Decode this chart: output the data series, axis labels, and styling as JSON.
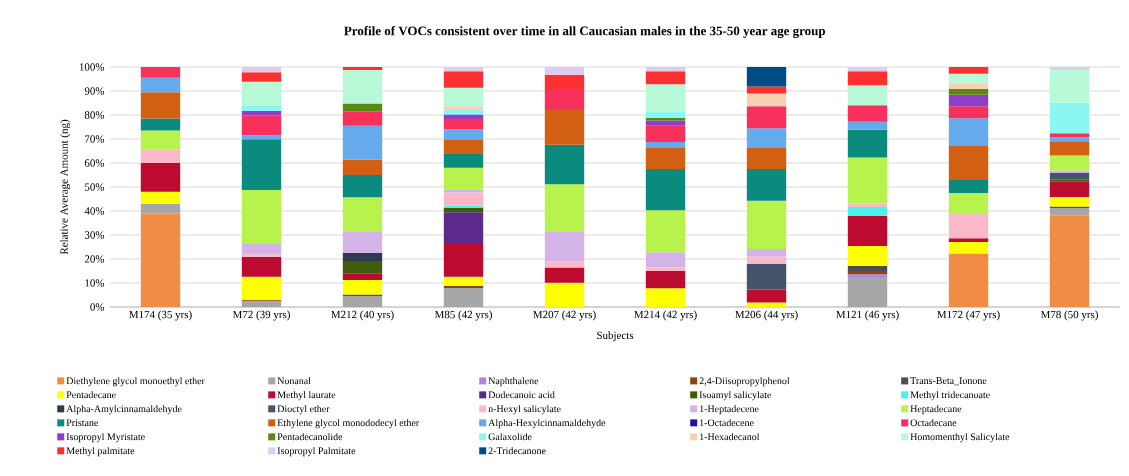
{
  "chart_data": {
    "type": "bar",
    "stacked": true,
    "title": "Profile of VOCs consistent over time in all Caucasian males in the 35-50 year age group",
    "xlabel": "Subjects",
    "ylabel": "Relative Average Amount (ng)",
    "categories": [
      "M174 (35 yrs)",
      "M72 (39 yrs)",
      "M212 (40 yrs)",
      "M85 (42 yrs)",
      "M207 (42 yrs)",
      "M214 (42 yrs)",
      "M206 (44 yrs)",
      "M121 (46 yrs)",
      "M172 (47 yrs)",
      "M78 (50 yrs)"
    ],
    "ylim": [
      0,
      100
    ],
    "yticks": [
      {
        "value": 0,
        "label": "0%"
      },
      {
        "value": 10,
        "label": "10%"
      },
      {
        "value": 20,
        "label": "20%"
      },
      {
        "value": 30,
        "label": "30%"
      },
      {
        "value": 40,
        "label": "40%"
      },
      {
        "value": 50,
        "label": "50%"
      },
      {
        "value": 60,
        "label": "60%"
      },
      {
        "value": 70,
        "label": "70%"
      },
      {
        "value": 80,
        "label": "80%"
      },
      {
        "value": 90,
        "label": "90%"
      },
      {
        "value": 100,
        "label": "100%"
      }
    ],
    "grid": "y",
    "legend": "bottom",
    "series": [
      {
        "name": "Diethylene glycol monoethyl ether",
        "color": "#f08c46",
        "values": [
          39,
          null,
          null,
          null,
          null,
          null,
          null,
          null,
          22.3,
          38.2
        ]
      },
      {
        "name": "Nonanal",
        "color": "#a6a6a6",
        "values": [
          4,
          2.6,
          4.6,
          7.9,
          null,
          null,
          null,
          12.5,
          null,
          3
        ]
      },
      {
        "name": "Naphthalene",
        "color": "#b083e0",
        "values": [
          null,
          null,
          null,
          null,
          null,
          null,
          null,
          1.1,
          null,
          null
        ]
      },
      {
        "name": "2,4-Diisopropylphenol",
        "color": "#8b4513",
        "values": [
          null,
          0.4,
          0.6,
          0.8,
          null,
          null,
          null,
          1.4,
          null,
          0.7
        ]
      },
      {
        "name": "Trans-Beta_Ionone",
        "color": "#4d4d4d",
        "values": [
          null,
          null,
          null,
          null,
          null,
          null,
          null,
          2.1,
          null,
          null
        ]
      },
      {
        "name": "Pentadecane",
        "color": "#ffff00",
        "values": [
          5,
          9.6,
          6.1,
          3.9,
          10.1,
          7.8,
          1.9,
          8.3,
          4.8,
          3.9
        ]
      },
      {
        "name": "Methyl laurate",
        "color": "#bd0a2f",
        "values": [
          12,
          8.3,
          2.8,
          13.7,
          6.4,
          7.3,
          5.4,
          12.6,
          1.5,
          6.4
        ]
      },
      {
        "name": "Dodecanoic acid",
        "color": "#5c2a8a",
        "values": [
          null,
          null,
          null,
          13.2,
          null,
          null,
          null,
          null,
          null,
          null
        ]
      },
      {
        "name": "Isoamyl salicylate",
        "color": "#3f5c0a",
        "values": [
          null,
          null,
          5.1,
          1.7,
          null,
          null,
          null,
          null,
          null,
          0.8
        ]
      },
      {
        "name": "Methyl tridecanoate",
        "color": "#4af2ec",
        "values": [
          null,
          null,
          null,
          1.1,
          null,
          null,
          null,
          3.7,
          null,
          null
        ]
      },
      {
        "name": "Alpha-Amylcinnamaldehyde",
        "color": "#2f3a4f",
        "values": [
          null,
          null,
          3.3,
          null,
          null,
          null,
          null,
          null,
          null,
          null
        ]
      },
      {
        "name": "Dioctyl ether",
        "color": "#44546a",
        "values": [
          null,
          null,
          null,
          null,
          null,
          null,
          10.7,
          null,
          null,
          2.8
        ]
      },
      {
        "name": "n-Hexyl salicylate",
        "color": "#fbb8c8",
        "values": [
          5.5,
          1.1,
          null,
          5.4,
          2.6,
          1.5,
          3,
          1.5,
          10.2,
          null
        ]
      },
      {
        "name": "1-Heptadecene",
        "color": "#d4b3e8",
        "values": [
          null,
          4.3,
          8.7,
          1.4,
          12.2,
          6.2,
          3.2,
          null,
          null,
          1.1
        ]
      },
      {
        "name": "Heptadecane",
        "color": "#b8f24d",
        "values": [
          8,
          22.4,
          14.5,
          8.9,
          19.8,
          17.5,
          20.1,
          19.1,
          8.7,
          6.2
        ]
      },
      {
        "name": "Pristane",
        "color": "#0b8a7e",
        "values": [
          5,
          21.2,
          9.3,
          5.8,
          16.5,
          17.2,
          13.2,
          11.6,
          5.4,
          null
        ]
      },
      {
        "name": "Ethylene glycol monododecyl ether",
        "color": "#d35f12",
        "values": [
          11,
          null,
          6.4,
          5.8,
          14.5,
          9.1,
          9.1,
          null,
          14.5,
          6
        ]
      },
      {
        "name": "Alpha-Hexylcinnamaldehyde",
        "color": "#66aaee",
        "values": [
          6,
          1.7,
          14.1,
          4.4,
          null,
          2.1,
          7.9,
          3.3,
          11.2,
          1.5
        ]
      },
      {
        "name": "1-Octadecene",
        "color": "#2412a0",
        "values": [
          null,
          null,
          null,
          null,
          null,
          null,
          null,
          null,
          null,
          null
        ]
      },
      {
        "name": "Octadecane",
        "color": "#f7305c",
        "values": [
          4.5,
          8.2,
          6.1,
          4.3,
          8.7,
          6.8,
          9.1,
          6.9,
          5,
          1.8
        ]
      },
      {
        "name": "Isopropyl Myristate",
        "color": "#8e3fc8",
        "values": [
          null,
          1.9,
          null,
          1.9,
          null,
          2.2,
          null,
          null,
          4.8,
          null
        ]
      },
      {
        "name": "Pentadecanolide",
        "color": "#5a8a10",
        "values": [
          null,
          null,
          3.2,
          null,
          null,
          1,
          null,
          null,
          2.4,
          null
        ]
      },
      {
        "name": "Galaxolide",
        "color": "#8cf6f2",
        "values": [
          null,
          2.4,
          null,
          1.9,
          null,
          2.9,
          null,
          null,
          null,
          12.7
        ]
      },
      {
        "name": "1-Hexadecanol",
        "color": "#f8d0b4",
        "values": [
          null,
          null,
          null,
          1.5,
          null,
          null,
          5.4,
          null,
          2.4,
          null
        ]
      },
      {
        "name": "Homomenthyl Salicylate",
        "color": "#b8fad8",
        "values": [
          null,
          9.8,
          14,
          7.8,
          null,
          11.2,
          null,
          8.3,
          4,
          13.6
        ]
      },
      {
        "name": "Methyl palmitate",
        "color": "#fb3131",
        "values": [
          null,
          3.9,
          1.2,
          6.8,
          6,
          5.4,
          2.9,
          5.8,
          2.8,
          null
        ]
      },
      {
        "name": "Isopropyl Palmitate",
        "color": "#e0ccf0",
        "values": [
          null,
          2.2,
          null,
          1.8,
          3.2,
          1.8,
          null,
          1.8,
          null,
          1.3
        ]
      },
      {
        "name": "2-Tridecanone",
        "color": "#004c86",
        "values": [
          null,
          null,
          null,
          null,
          null,
          null,
          8.1,
          null,
          null,
          null
        ]
      }
    ]
  }
}
